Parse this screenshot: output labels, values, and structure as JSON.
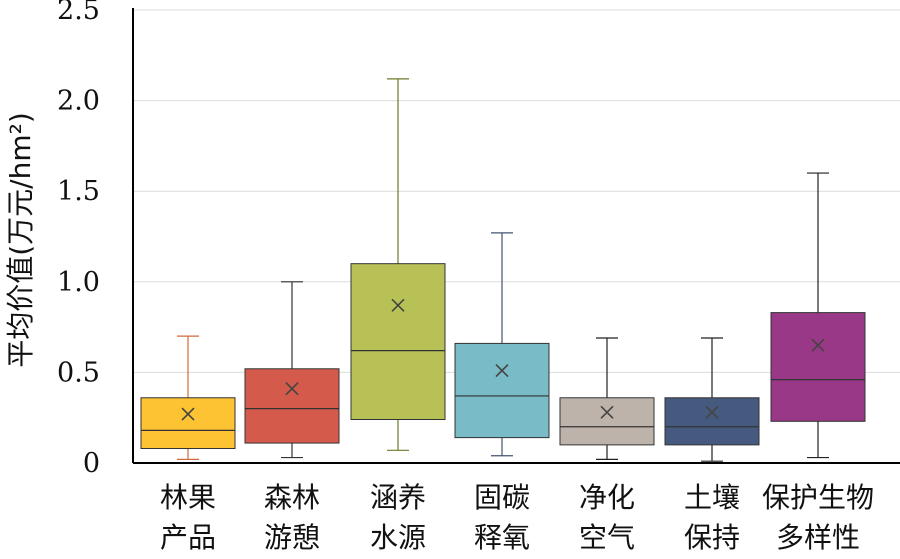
{
  "chart_data": {
    "type": "box",
    "ylabel": "平均价值(万元/hm²)",
    "ylim": [
      0,
      2.5
    ],
    "yticks": [
      0,
      0.5,
      1.0,
      1.5,
      2.0,
      2.5
    ],
    "ytick_labels": [
      "0",
      "0.5",
      "1.0",
      "1.5",
      "2.0",
      "2.5"
    ],
    "grid": true,
    "categories": [
      {
        "line1": "林果",
        "line2": "产品"
      },
      {
        "line1": "森林",
        "line2": "游憩"
      },
      {
        "line1": "涵养",
        "line2": "水源"
      },
      {
        "line1": "固碳",
        "line2": "释氧"
      },
      {
        "line1": "净化",
        "line2": "空气"
      },
      {
        "line1": "土壤",
        "line2": "保持"
      },
      {
        "line1": "保护生物",
        "line2": "多样性"
      }
    ],
    "boxes": [
      {
        "min": 0.02,
        "q1": 0.08,
        "median": 0.18,
        "q3": 0.36,
        "max": 0.7,
        "mean": 0.27,
        "color": "#FDC332"
      },
      {
        "min": 0.03,
        "q1": 0.11,
        "median": 0.3,
        "q3": 0.52,
        "max": 1.0,
        "mean": 0.41,
        "color": "#D45A4C"
      },
      {
        "min": 0.07,
        "q1": 0.24,
        "median": 0.62,
        "q3": 1.1,
        "max": 2.12,
        "mean": 0.87,
        "color": "#B8C155"
      },
      {
        "min": 0.04,
        "q1": 0.14,
        "median": 0.37,
        "q3": 0.66,
        "max": 1.27,
        "mean": 0.51,
        "color": "#79BBC6"
      },
      {
        "min": 0.02,
        "q1": 0.1,
        "median": 0.2,
        "q3": 0.36,
        "max": 0.69,
        "mean": 0.28,
        "color": "#BEB3AA"
      },
      {
        "min": 0.01,
        "q1": 0.1,
        "median": 0.2,
        "q3": 0.36,
        "max": 0.69,
        "mean": 0.28,
        "color": "#465A7F"
      },
      {
        "min": 0.03,
        "q1": 0.23,
        "median": 0.46,
        "q3": 0.83,
        "max": 1.6,
        "mean": 0.65,
        "color": "#983887"
      }
    ],
    "whisker_colors": [
      "#D06A3A",
      "#333333",
      "#6C7A2A",
      "#44556F",
      "#222222",
      "#222222",
      "#222222"
    ]
  }
}
